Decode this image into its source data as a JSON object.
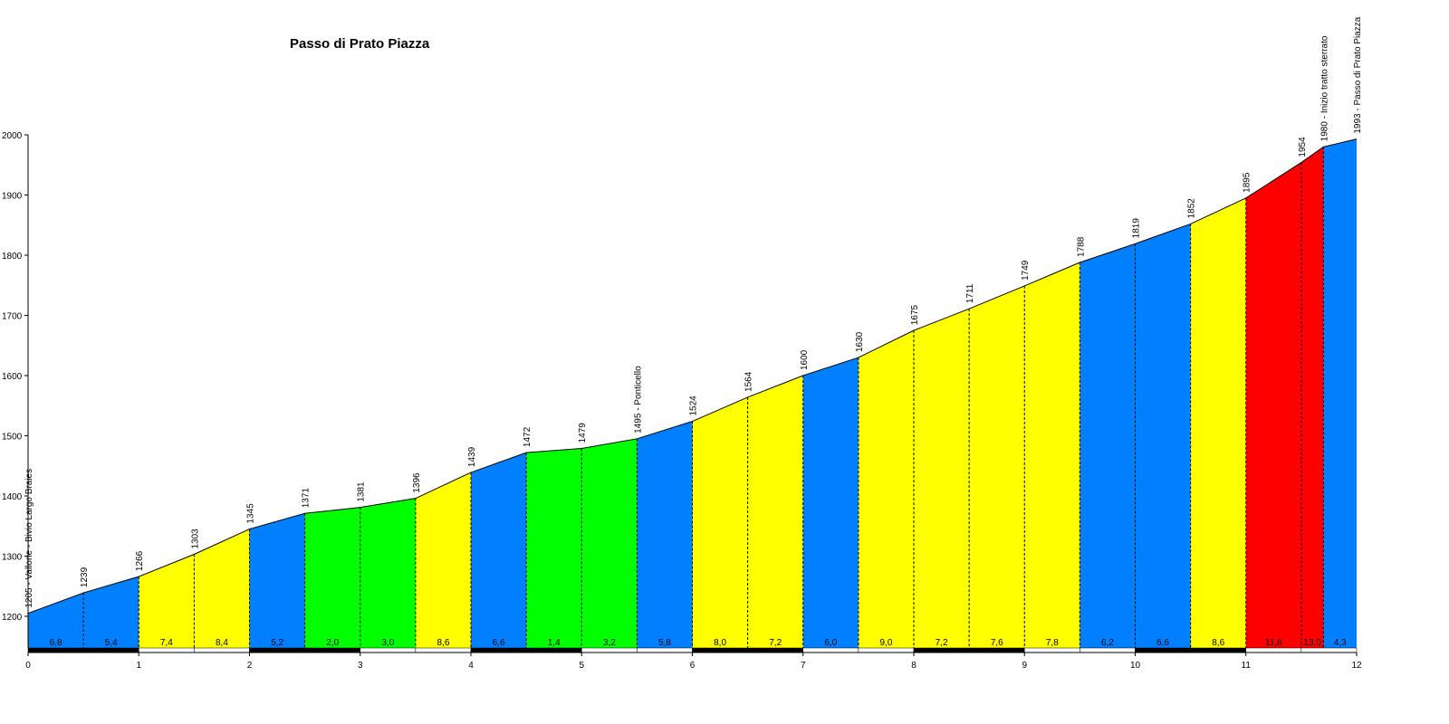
{
  "chart_data": {
    "type": "area",
    "title": "Passo di Prato Piazza",
    "xlabel": "",
    "ylabel": "",
    "xlim": [
      0,
      12
    ],
    "ylim": [
      1140,
      2000
    ],
    "x_ticks": [
      "0",
      "1",
      "2",
      "3",
      "4",
      "5",
      "6",
      "7",
      "8",
      "9",
      "10",
      "11",
      "12"
    ],
    "y_ticks": [
      "1200",
      "1300",
      "1400",
      "1500",
      "1600",
      "1700",
      "1800",
      "1900",
      "2000"
    ],
    "points": [
      {
        "x": 0.0,
        "y": 1205,
        "label": "1205 - Vallone - Bivio Largo Braies"
      },
      {
        "x": 0.5,
        "y": 1239,
        "label": "1239"
      },
      {
        "x": 1.0,
        "y": 1266,
        "label": "1266"
      },
      {
        "x": 1.5,
        "y": 1303,
        "label": "1303"
      },
      {
        "x": 2.0,
        "y": 1345,
        "label": "1345"
      },
      {
        "x": 2.5,
        "y": 1371,
        "label": "1371"
      },
      {
        "x": 3.0,
        "y": 1381,
        "label": "1381"
      },
      {
        "x": 3.5,
        "y": 1396,
        "label": "1396"
      },
      {
        "x": 4.0,
        "y": 1439,
        "label": "1439"
      },
      {
        "x": 4.5,
        "y": 1472,
        "label": "1472"
      },
      {
        "x": 5.0,
        "y": 1479,
        "label": "1479"
      },
      {
        "x": 5.5,
        "y": 1495,
        "label": "1495 - Ponticello"
      },
      {
        "x": 6.0,
        "y": 1524,
        "label": "1524"
      },
      {
        "x": 6.5,
        "y": 1564,
        "label": "1564"
      },
      {
        "x": 7.0,
        "y": 1600,
        "label": "1600"
      },
      {
        "x": 7.5,
        "y": 1630,
        "label": "1630"
      },
      {
        "x": 8.0,
        "y": 1675,
        "label": "1675"
      },
      {
        "x": 8.5,
        "y": 1711,
        "label": "1711"
      },
      {
        "x": 9.0,
        "y": 1749,
        "label": "1749"
      },
      {
        "x": 9.5,
        "y": 1788,
        "label": "1788"
      },
      {
        "x": 10.0,
        "y": 1819,
        "label": "1819"
      },
      {
        "x": 10.5,
        "y": 1852,
        "label": "1852"
      },
      {
        "x": 11.0,
        "y": 1895,
        "label": "1895"
      },
      {
        "x": 11.5,
        "y": 1954,
        "label": "1954"
      },
      {
        "x": 11.7,
        "y": 1980,
        "label": "1980 - Inizio tratto sterrato"
      },
      {
        "x": 12.0,
        "y": 1993,
        "label": "1993 - Passo di Prato Piazza"
      }
    ],
    "segments": [
      {
        "gradient": "6,8",
        "color": "#0080ff"
      },
      {
        "gradient": "5,4",
        "color": "#0080ff"
      },
      {
        "gradient": "7,4",
        "color": "#ffff00"
      },
      {
        "gradient": "8,4",
        "color": "#ffff00"
      },
      {
        "gradient": "5,2",
        "color": "#0080ff"
      },
      {
        "gradient": "2,0",
        "color": "#00ff00"
      },
      {
        "gradient": "3,0",
        "color": "#00ff00"
      },
      {
        "gradient": "8,6",
        "color": "#ffff00"
      },
      {
        "gradient": "6,6",
        "color": "#0080ff"
      },
      {
        "gradient": "1,4",
        "color": "#00ff00"
      },
      {
        "gradient": "3,2",
        "color": "#00ff00"
      },
      {
        "gradient": "5,8",
        "color": "#0080ff"
      },
      {
        "gradient": "8,0",
        "color": "#ffff00"
      },
      {
        "gradient": "7,2",
        "color": "#ffff00"
      },
      {
        "gradient": "6,0",
        "color": "#0080ff"
      },
      {
        "gradient": "9,0",
        "color": "#ffff00"
      },
      {
        "gradient": "7,2",
        "color": "#ffff00"
      },
      {
        "gradient": "7,6",
        "color": "#ffff00"
      },
      {
        "gradient": "7,8",
        "color": "#ffff00"
      },
      {
        "gradient": "6,2",
        "color": "#0080ff"
      },
      {
        "gradient": "6,6",
        "color": "#0080ff"
      },
      {
        "gradient": "8,6",
        "color": "#ffff00"
      },
      {
        "gradient": "11,8",
        "color": "#ff0000"
      },
      {
        "gradient": "13,0",
        "color": "#ff0000"
      },
      {
        "gradient": "4,3",
        "color": "#0080ff"
      }
    ],
    "grid": false,
    "legend": "none"
  }
}
